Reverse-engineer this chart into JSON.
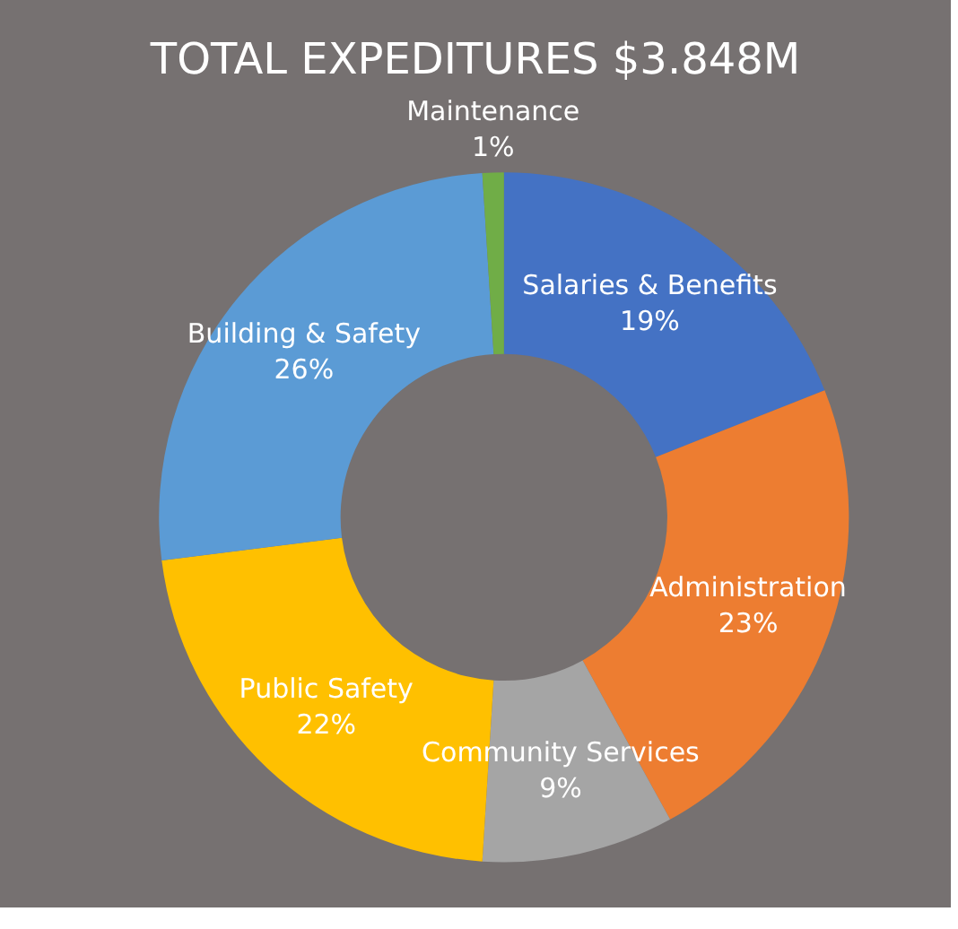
{
  "chart_data": {
    "type": "donut",
    "title": "TOTAL EXPEDITURES $3.848M",
    "categories": [
      "Salaries & Benefits",
      "Administration",
      "Community Services",
      "Public Safety",
      "Building & Safety",
      "Maintenance"
    ],
    "values": [
      19,
      23,
      9,
      22,
      26,
      1
    ],
    "value_labels": [
      "19%",
      "23%",
      "9%",
      "22%",
      "26%",
      "1%"
    ],
    "colors": [
      "#4472c4",
      "#ed7d31",
      "#a5a5a5",
      "#ffc000",
      "#5b9bd5",
      "#70ad47"
    ],
    "legend": false
  }
}
